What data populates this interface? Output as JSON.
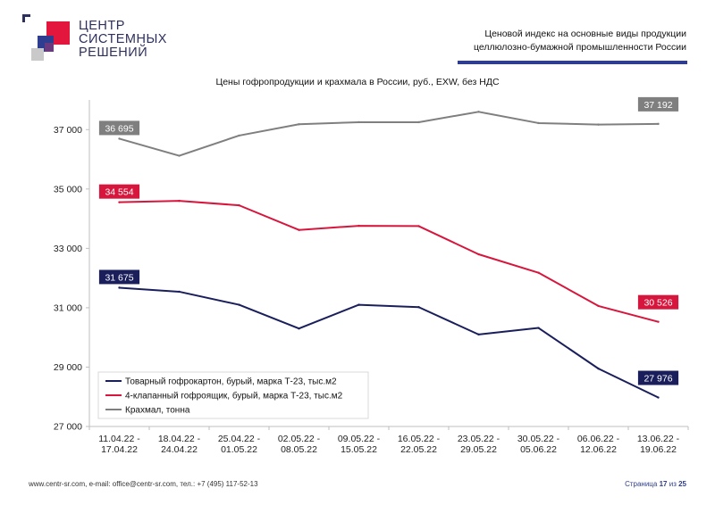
{
  "logo": {
    "line1": "ЦЕНТР",
    "line2": "СИСТЕМНЫХ",
    "line3": "РЕШЕНИЙ"
  },
  "header": {
    "title_line1": "Ценовой индекс на основные виды продукции",
    "title_line2": "целлюлозно-бумажной промышленности России"
  },
  "chart_data": {
    "type": "line",
    "title": "Цены гофропродукции и крахмала в России, руб., EXW, без НДС",
    "categories": [
      [
        "11.04.22 -",
        "17.04.22"
      ],
      [
        "18.04.22 -",
        "24.04.22"
      ],
      [
        "25.04.22 -",
        "01.05.22"
      ],
      [
        "02.05.22 -",
        "08.05.22"
      ],
      [
        "09.05.22 -",
        "15.05.22"
      ],
      [
        "16.05.22 -",
        "22.05.22"
      ],
      [
        "23.05.22 -",
        "29.05.22"
      ],
      [
        "30.05.22 -",
        "05.06.22"
      ],
      [
        "06.06.22 -",
        "12.06.22"
      ],
      [
        "13.06.22 -",
        "19.06.22"
      ]
    ],
    "yticks": [
      "27 000",
      "29 000",
      "31 000",
      "33 000",
      "35 000",
      "37 000"
    ],
    "ylim": [
      27000,
      38000
    ],
    "grid": false,
    "legend_position": "bottom-left",
    "series": [
      {
        "name": "Товарный гофрокартон, бурый, марка Т-23, тыс.м2",
        "color": "#1a1f5c",
        "values": [
          31675,
          31540,
          31100,
          30300,
          31100,
          31020,
          30100,
          30320,
          28950,
          27976
        ],
        "first_label": "31 675",
        "last_label": "27 976"
      },
      {
        "name": "4-клапанный гофроящик, бурый, марка Т-23, тыс.м2",
        "color": "#d6163c",
        "values": [
          34554,
          34600,
          34450,
          33620,
          33760,
          33750,
          32800,
          32180,
          31060,
          30526
        ],
        "first_label": "34 554",
        "last_label": "30 526"
      },
      {
        "name": "Крахмал, тонна",
        "color": "#7f7f7f",
        "values": [
          36695,
          36120,
          36800,
          37180,
          37250,
          37250,
          37600,
          37220,
          37170,
          37192
        ],
        "first_label": "36 695",
        "last_label": "37 192"
      }
    ]
  },
  "footer": {
    "contacts": "www.centr-sr.com, e-mail: office@centr-sr.com, тел.: +7 (495) 117-52-13",
    "page_word": "Страница",
    "page_current": "17",
    "page_of": "из",
    "page_total": "25"
  }
}
